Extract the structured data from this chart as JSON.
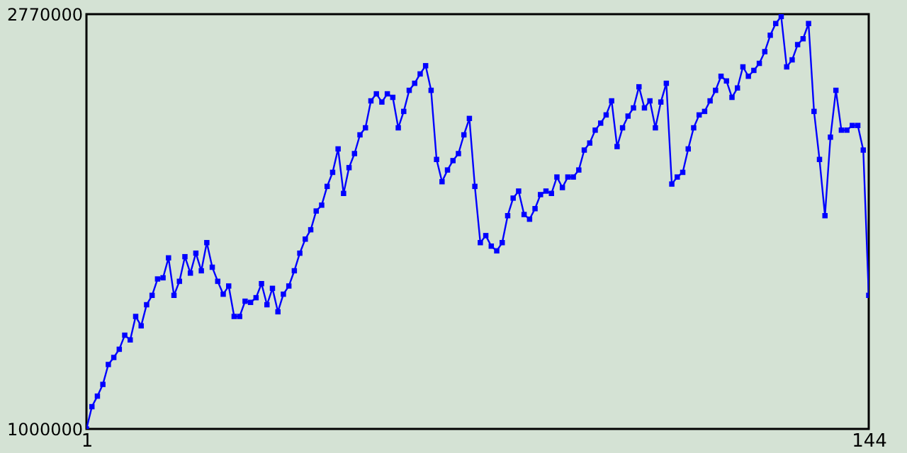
{
  "chart_data": {
    "type": "line",
    "marker": "square",
    "grid": false,
    "x": [
      1,
      2,
      3,
      4,
      5,
      6,
      7,
      8,
      9,
      10,
      11,
      12,
      13,
      14,
      15,
      16,
      17,
      18,
      19,
      20,
      21,
      22,
      23,
      24,
      25,
      26,
      27,
      28,
      29,
      30,
      31,
      32,
      33,
      34,
      35,
      36,
      37,
      38,
      39,
      40,
      41,
      42,
      43,
      44,
      45,
      46,
      47,
      48,
      49,
      50,
      51,
      52,
      53,
      54,
      55,
      56,
      57,
      58,
      59,
      60,
      61,
      62,
      63,
      64,
      65,
      66,
      67,
      68,
      69,
      70,
      71,
      72,
      73,
      74,
      75,
      76,
      77,
      78,
      79,
      80,
      81,
      82,
      83,
      84,
      85,
      86,
      87,
      88,
      89,
      90,
      91,
      92,
      93,
      94,
      95,
      96,
      97,
      98,
      99,
      100,
      101,
      102,
      103,
      104,
      105,
      106,
      107,
      108,
      109,
      110,
      111,
      112,
      113,
      114,
      115,
      116,
      117,
      118,
      119,
      120,
      121,
      122,
      123,
      124,
      125,
      126,
      127,
      128,
      129,
      130,
      131,
      132,
      133,
      134,
      135,
      136,
      137,
      138,
      139,
      140,
      141,
      142,
      143,
      144
    ],
    "series": [
      {
        "color": "#0000ff",
        "values": [
          1000000,
          1095000,
          1140000,
          1190000,
          1275000,
          1305000,
          1340000,
          1400000,
          1380000,
          1480000,
          1440000,
          1530000,
          1570000,
          1640000,
          1645000,
          1730000,
          1570000,
          1630000,
          1735000,
          1665000,
          1750000,
          1675000,
          1795000,
          1690000,
          1630000,
          1575000,
          1610000,
          1480000,
          1480000,
          1545000,
          1540000,
          1560000,
          1620000,
          1530000,
          1600000,
          1500000,
          1575000,
          1610000,
          1675000,
          1750000,
          1810000,
          1850000,
          1930000,
          1955000,
          2035000,
          2095000,
          2195000,
          2005000,
          2115000,
          2175000,
          2255000,
          2285000,
          2400000,
          2430000,
          2395000,
          2430000,
          2415000,
          2285000,
          2355000,
          2445000,
          2475000,
          2515000,
          2550000,
          2445000,
          2150000,
          2055000,
          2105000,
          2145000,
          2175000,
          2255000,
          2325000,
          2035000,
          1795000,
          1825000,
          1780000,
          1760000,
          1795000,
          1910000,
          1985000,
          2015000,
          1915000,
          1895000,
          1940000,
          2000000,
          2015000,
          2005000,
          2075000,
          2030000,
          2075000,
          2075000,
          2105000,
          2190000,
          2220000,
          2275000,
          2305000,
          2340000,
          2400000,
          2205000,
          2285000,
          2335000,
          2370000,
          2460000,
          2370000,
          2400000,
          2285000,
          2395000,
          2475000,
          2045000,
          2075000,
          2095000,
          2195000,
          2285000,
          2340000,
          2355000,
          2400000,
          2445000,
          2505000,
          2485000,
          2415000,
          2455000,
          2545000,
          2505000,
          2530000,
          2560000,
          2610000,
          2680000,
          2730000,
          2760000,
          2545000,
          2575000,
          2640000,
          2665000,
          2730000,
          2355000,
          2150000,
          1910000,
          2245000,
          2445000,
          2275000,
          2275000,
          2295000,
          2295000,
          2190000,
          1570000
        ]
      }
    ],
    "xlim": [
      1,
      144
    ],
    "xticks": [
      1,
      144
    ],
    "ylim": [
      1000000,
      2770000
    ],
    "yticks": [
      1000000,
      2770000
    ]
  }
}
